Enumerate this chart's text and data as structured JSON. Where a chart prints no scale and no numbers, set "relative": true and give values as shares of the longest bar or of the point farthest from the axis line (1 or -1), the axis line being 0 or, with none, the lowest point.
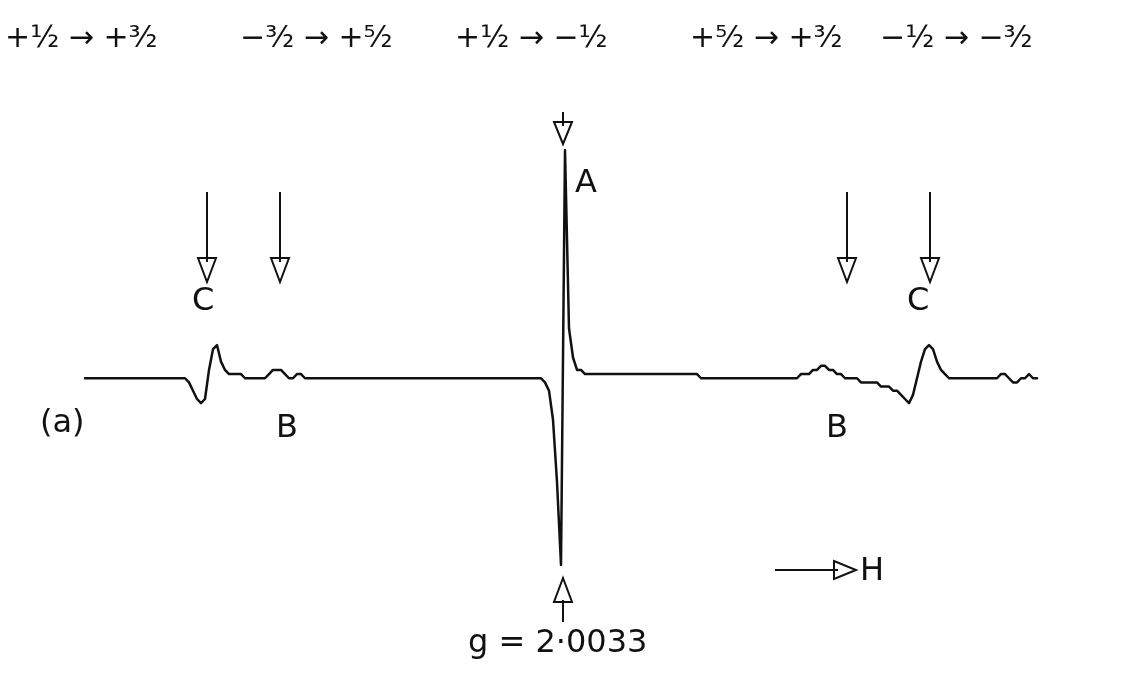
{
  "chart_data": {
    "type": "line",
    "relative": true,
    "marker": "none",
    "line_style": "solid",
    "categories": [
      null,
      null,
      null,
      null,
      null,
      null,
      null,
      null,
      null,
      null,
      null,
      null,
      null,
      null,
      null,
      null,
      null,
      null,
      null,
      null,
      null,
      null,
      null,
      null,
      null,
      null,
      null,
      null,
      null,
      null,
      null,
      null,
      null,
      null,
      null,
      null,
      null,
      null,
      null,
      null,
      null,
      null,
      null,
      null,
      null,
      null,
      null,
      null,
      null,
      null,
      null,
      null,
      null,
      null,
      null,
      null,
      null,
      null,
      null,
      null,
      null,
      null,
      null,
      null,
      null,
      null,
      null,
      null,
      null,
      null,
      null,
      null,
      null,
      null,
      null,
      null,
      null,
      null,
      null,
      null,
      null,
      null,
      null,
      null,
      null,
      null,
      null,
      null,
      null,
      null,
      null,
      null,
      null,
      null,
      null,
      null,
      null,
      null,
      null,
      null,
      null,
      null,
      null,
      null,
      null,
      null,
      null,
      null,
      null,
      null,
      null,
      null,
      null,
      null,
      null,
      null,
      null,
      null,
      null,
      null,
      null,
      null,
      null,
      null,
      null,
      null,
      null,
      null,
      null,
      null,
      null,
      null,
      null,
      null,
      null,
      null,
      null,
      null,
      null,
      null,
      null,
      null,
      null,
      null,
      null,
      null,
      null,
      null,
      null,
      null,
      null,
      null,
      null,
      null,
      null,
      null,
      null,
      null,
      null,
      null,
      null,
      null,
      null,
      null,
      null,
      null,
      null,
      null,
      null,
      null,
      null,
      null,
      null,
      null,
      null,
      null,
      null,
      null,
      null,
      null,
      null,
      null,
      null,
      null,
      null,
      null,
      null,
      null,
      null,
      null,
      null,
      null,
      null,
      null,
      null,
      null,
      null,
      null,
      null,
      null,
      null,
      null,
      null,
      null,
      null,
      null,
      null,
      null,
      null,
      null,
      null,
      null,
      null,
      null,
      null,
      null,
      null,
      null,
      null,
      null,
      null,
      null,
      null,
      null,
      null,
      null,
      null,
      null,
      null,
      null,
      null,
      null,
      null,
      null,
      null,
      null,
      null,
      null,
      null
    ],
    "series": [
      {
        "color": "#111111",
        "values": [
          0.45,
          0.45,
          0.45,
          0.45,
          0.45,
          0.45,
          0.45,
          0.45,
          0.45,
          0.45,
          0.45,
          0.45,
          0.45,
          0.45,
          0.45,
          0.45,
          0.45,
          0.45,
          0.45,
          0.45,
          0.45,
          0.45,
          0.45,
          0.45,
          0.45,
          0.45,
          0.44,
          0.42,
          0.4,
          0.39,
          0.4,
          0.47,
          0.52,
          0.53,
          0.49,
          0.47,
          0.46,
          0.46,
          0.46,
          0.46,
          0.45,
          0.45,
          0.45,
          0.45,
          0.45,
          0.45,
          0.46,
          0.47,
          0.47,
          0.47,
          0.46,
          0.45,
          0.45,
          0.46,
          0.46,
          0.45,
          0.45,
          0.45,
          0.45,
          0.45,
          0.45,
          0.45,
          0.45,
          0.45,
          0.45,
          0.45,
          0.45,
          0.45,
          0.45,
          0.45,
          0.45,
          0.45,
          0.45,
          0.45,
          0.45,
          0.45,
          0.45,
          0.45,
          0.45,
          0.45,
          0.45,
          0.45,
          0.45,
          0.45,
          0.45,
          0.45,
          0.45,
          0.45,
          0.45,
          0.45,
          0.45,
          0.45,
          0.45,
          0.45,
          0.45,
          0.45,
          0.45,
          0.45,
          0.45,
          0.45,
          0.45,
          0.45,
          0.45,
          0.45,
          0.45,
          0.45,
          0.45,
          0.45,
          0.45,
          0.45,
          0.45,
          0.45,
          0.45,
          0.45,
          0.45,
          0.44,
          0.42,
          0.35,
          0.2,
          0,
          1,
          0.57,
          0.5,
          0.47,
          0.47,
          0.46,
          0.46,
          0.46,
          0.46,
          0.46,
          0.46,
          0.46,
          0.46,
          0.46,
          0.46,
          0.46,
          0.46,
          0.46,
          0.46,
          0.46,
          0.46,
          0.46,
          0.46,
          0.46,
          0.46,
          0.46,
          0.46,
          0.46,
          0.46,
          0.46,
          0.46,
          0.46,
          0.46,
          0.46,
          0.45,
          0.45,
          0.45,
          0.45,
          0.45,
          0.45,
          0.45,
          0.45,
          0.45,
          0.45,
          0.45,
          0.45,
          0.45,
          0.45,
          0.45,
          0.45,
          0.45,
          0.45,
          0.45,
          0.45,
          0.45,
          0.45,
          0.45,
          0.45,
          0.45,
          0.46,
          0.46,
          0.46,
          0.47,
          0.47,
          0.48,
          0.48,
          0.47,
          0.47,
          0.46,
          0.46,
          0.45,
          0.45,
          0.45,
          0.45,
          0.44,
          0.44,
          0.44,
          0.44,
          0.44,
          0.43,
          0.43,
          0.43,
          0.42,
          0.42,
          0.41,
          0.4,
          0.39,
          0.41,
          0.45,
          0.49,
          0.52,
          0.53,
          0.52,
          0.49,
          0.47,
          0.46,
          0.45,
          0.45,
          0.45,
          0.45,
          0.45,
          0.45,
          0.45,
          0.45,
          0.45,
          0.45,
          0.45,
          0.45,
          0.45,
          0.46,
          0.46,
          0.45,
          0.44,
          0.44,
          0.45,
          0.45,
          0.46,
          0.45,
          0.45
        ]
      }
    ],
    "annotations": [
      "+½ → +³⁄₂",
      "−³⁄₂ → +⁵⁄₂",
      "+½ → −½",
      "+⁵⁄₂ → +³⁄₂",
      "−½ → −³⁄₂",
      "A",
      "C",
      "C",
      "B",
      "B",
      "(a)",
      "g = 2·0033",
      "H"
    ]
  }
}
